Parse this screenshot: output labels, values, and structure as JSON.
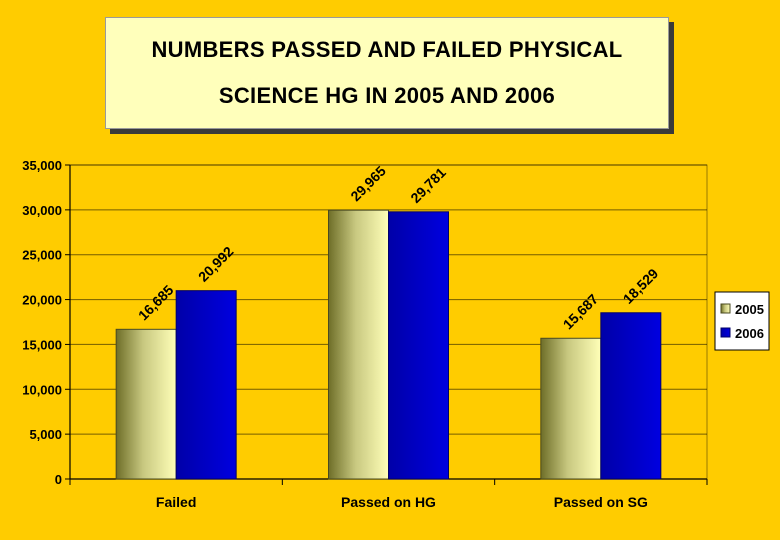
{
  "title": {
    "line1": "NUMBERS PASSED AND FAILED PHYSICAL",
    "line2": "SCIENCE HG IN 2005 AND 2006"
  },
  "colors": {
    "background": "#FFCC00",
    "title_box": "#FFFFBB",
    "series_2005": "#FFFFAA",
    "series_2006": "#0000CC"
  },
  "chart_data": {
    "type": "bar",
    "title": "NUMBERS PASSED AND FAILED PHYSICAL SCIENCE HG IN 2005 AND 2006",
    "categories": [
      "Failed",
      "Passed on HG",
      "Passed on SG"
    ],
    "series": [
      {
        "name": "2005",
        "values": [
          16685,
          29965,
          15687
        ],
        "labels": [
          "16,685",
          "29,965",
          "15,687"
        ]
      },
      {
        "name": "2006",
        "values": [
          20992,
          29781,
          18529
        ],
        "labels": [
          "20,992",
          "29,781",
          "18,529"
        ]
      }
    ],
    "ylim": [
      0,
      35000
    ],
    "yticks": [
      0,
      5000,
      10000,
      15000,
      20000,
      25000,
      30000,
      35000
    ],
    "ytick_labels": [
      "0",
      "5,000",
      "10,000",
      "15,000",
      "20,000",
      "25,000",
      "30,000",
      "35,000"
    ],
    "grid": true,
    "legend": "right",
    "xlabel": "",
    "ylabel": ""
  }
}
